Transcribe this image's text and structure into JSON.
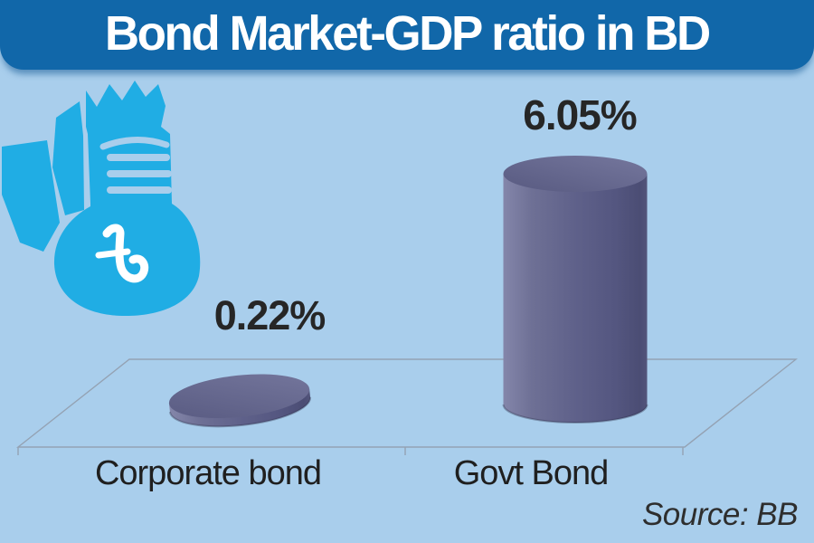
{
  "title": {
    "text": "Bond Market-GDP ratio in BD"
  },
  "chart_data": {
    "type": "bar",
    "style": "3d-cylinder",
    "title": "Bond Market-GDP ratio in BD",
    "categories": [
      "Corporate bond",
      "Govt Bond"
    ],
    "values": [
      0.22,
      6.05
    ],
    "value_labels": [
      "0.22%",
      "6.05%"
    ],
    "ylim": [
      0,
      6.05
    ],
    "xlabel": "",
    "ylabel": "",
    "grid": false,
    "legend": false,
    "source": "Source: BB",
    "bar_color": "#5F618A",
    "floor_line_color": "#94A2B3"
  },
  "icon": {
    "name": "money-bag-taka-icon",
    "description": "hand holding money bag with Bangladeshi taka symbol",
    "color": "#20ADE4",
    "symbol_color": "#FFFFFF"
  },
  "colors": {
    "background": "#A9CEEC",
    "banner": "#1167A9",
    "banner_text": "#FFFFFF",
    "label_text": "#262626"
  },
  "source": {
    "text": "Source: BB"
  }
}
